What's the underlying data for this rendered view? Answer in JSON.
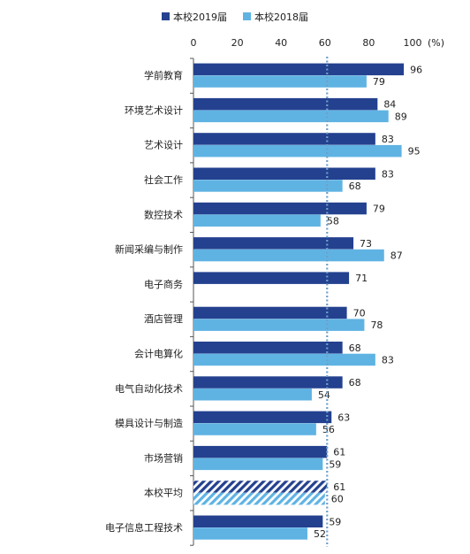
{
  "chart_data": {
    "type": "bar",
    "orientation": "horizontal",
    "categories": [
      "学前教育",
      "环境艺术设计",
      "艺术设计",
      "社会工作",
      "数控技术",
      "新闻采编与制作",
      "电子商务",
      "酒店管理",
      "会计电算化",
      "电气自动化技术",
      "模具设计与制造",
      "市场营销",
      "本校平均",
      "电子信息工程技术"
    ],
    "series": [
      {
        "name": "本校2019届",
        "color": "#24418f",
        "values": [
          96,
          84,
          83,
          83,
          79,
          73,
          71,
          70,
          68,
          68,
          63,
          61,
          61,
          59
        ]
      },
      {
        "name": "本校2018届",
        "color": "#5fb3e3",
        "values": [
          79,
          89,
          95,
          68,
          58,
          87,
          null,
          78,
          83,
          54,
          56,
          59,
          60,
          52
        ]
      }
    ],
    "highlight_category": "本校平均",
    "highlight_style": "hatched",
    "reference_line": {
      "value": 61,
      "style": "dotted",
      "color": "#6f9fc7"
    },
    "xlim": [
      0,
      100
    ],
    "xticks": [
      0,
      20,
      40,
      60,
      80,
      100
    ],
    "tick_labels": [
      "0",
      "20",
      "40",
      "60",
      "80",
      "100"
    ],
    "unit_label": "(%)",
    "legend_position": "top",
    "grid": false,
    "title": "",
    "xlabel": "",
    "ylabel": ""
  }
}
